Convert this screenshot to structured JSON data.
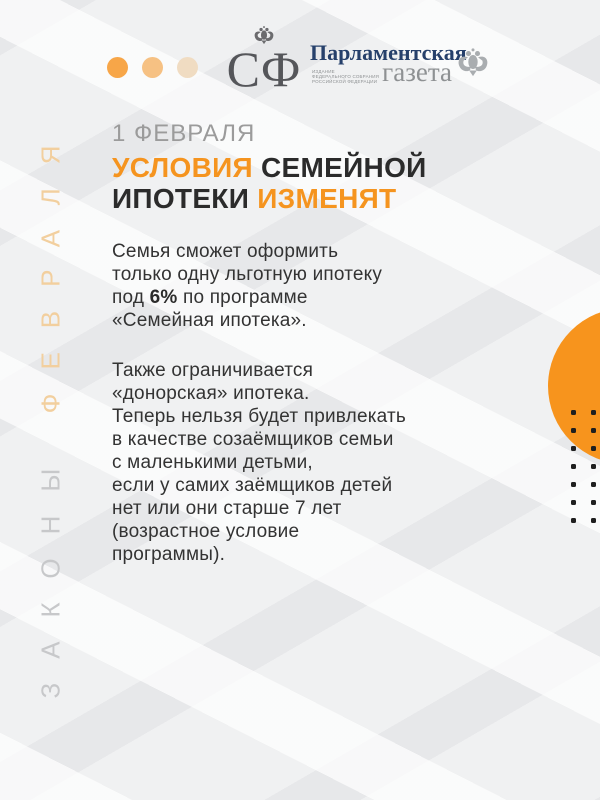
{
  "page": {
    "accent": "#F5941F",
    "bg": "#f0f1f2"
  },
  "header": {
    "dots_colors": [
      "#F7A648",
      "#F6C183",
      "#F0DCC2"
    ],
    "sf_logo": {
      "text": "СФ"
    },
    "pg_logo": {
      "line1": "Парламентская",
      "line2": "газета",
      "subtext": [
        "ИЗДАНИЕ",
        "ФЕДЕРАЛЬНОГО СОБРАНИЯ",
        "РОССИЙСКОЙ ФЕДЕРАЦИИ"
      ]
    }
  },
  "side_label": {
    "word1": "ЗАКОНЫ",
    "word2": "ФЕВРАЛЯ"
  },
  "title": {
    "date": "1 ФЕВРАЛЯ",
    "line2_accent": "УСЛОВИЯ",
    "line2_rest": " СЕМЕЙНОЙ",
    "line3_rest": "ИПОТЕКИ ",
    "line3_accent": "ИЗМЕНЯТ"
  },
  "body": {
    "p1": {
      "l1": "Семья сможет оформить",
      "l2": "только одну льготную ипотеку",
      "l3a": "под ",
      "l3b": "6%",
      "l3c": " по программе",
      "l4": "«Семейная ипотека»."
    },
    "p2": {
      "lines": [
        "Также ограничивается",
        "«донорская» ипотека.",
        "Теперь нельзя будет привлекать",
        "в качестве созаёмщиков семьи",
        "с маленькими детьми,",
        "если у самих заёмщиков детей",
        "нет или они старше 7 лет",
        "(возрастное условие",
        "программы)."
      ]
    }
  },
  "decor": {
    "circle_color": "#F7941D",
    "dot_grid": {
      "rows": 7,
      "cols": 2,
      "color": "#1f1f1f"
    }
  }
}
